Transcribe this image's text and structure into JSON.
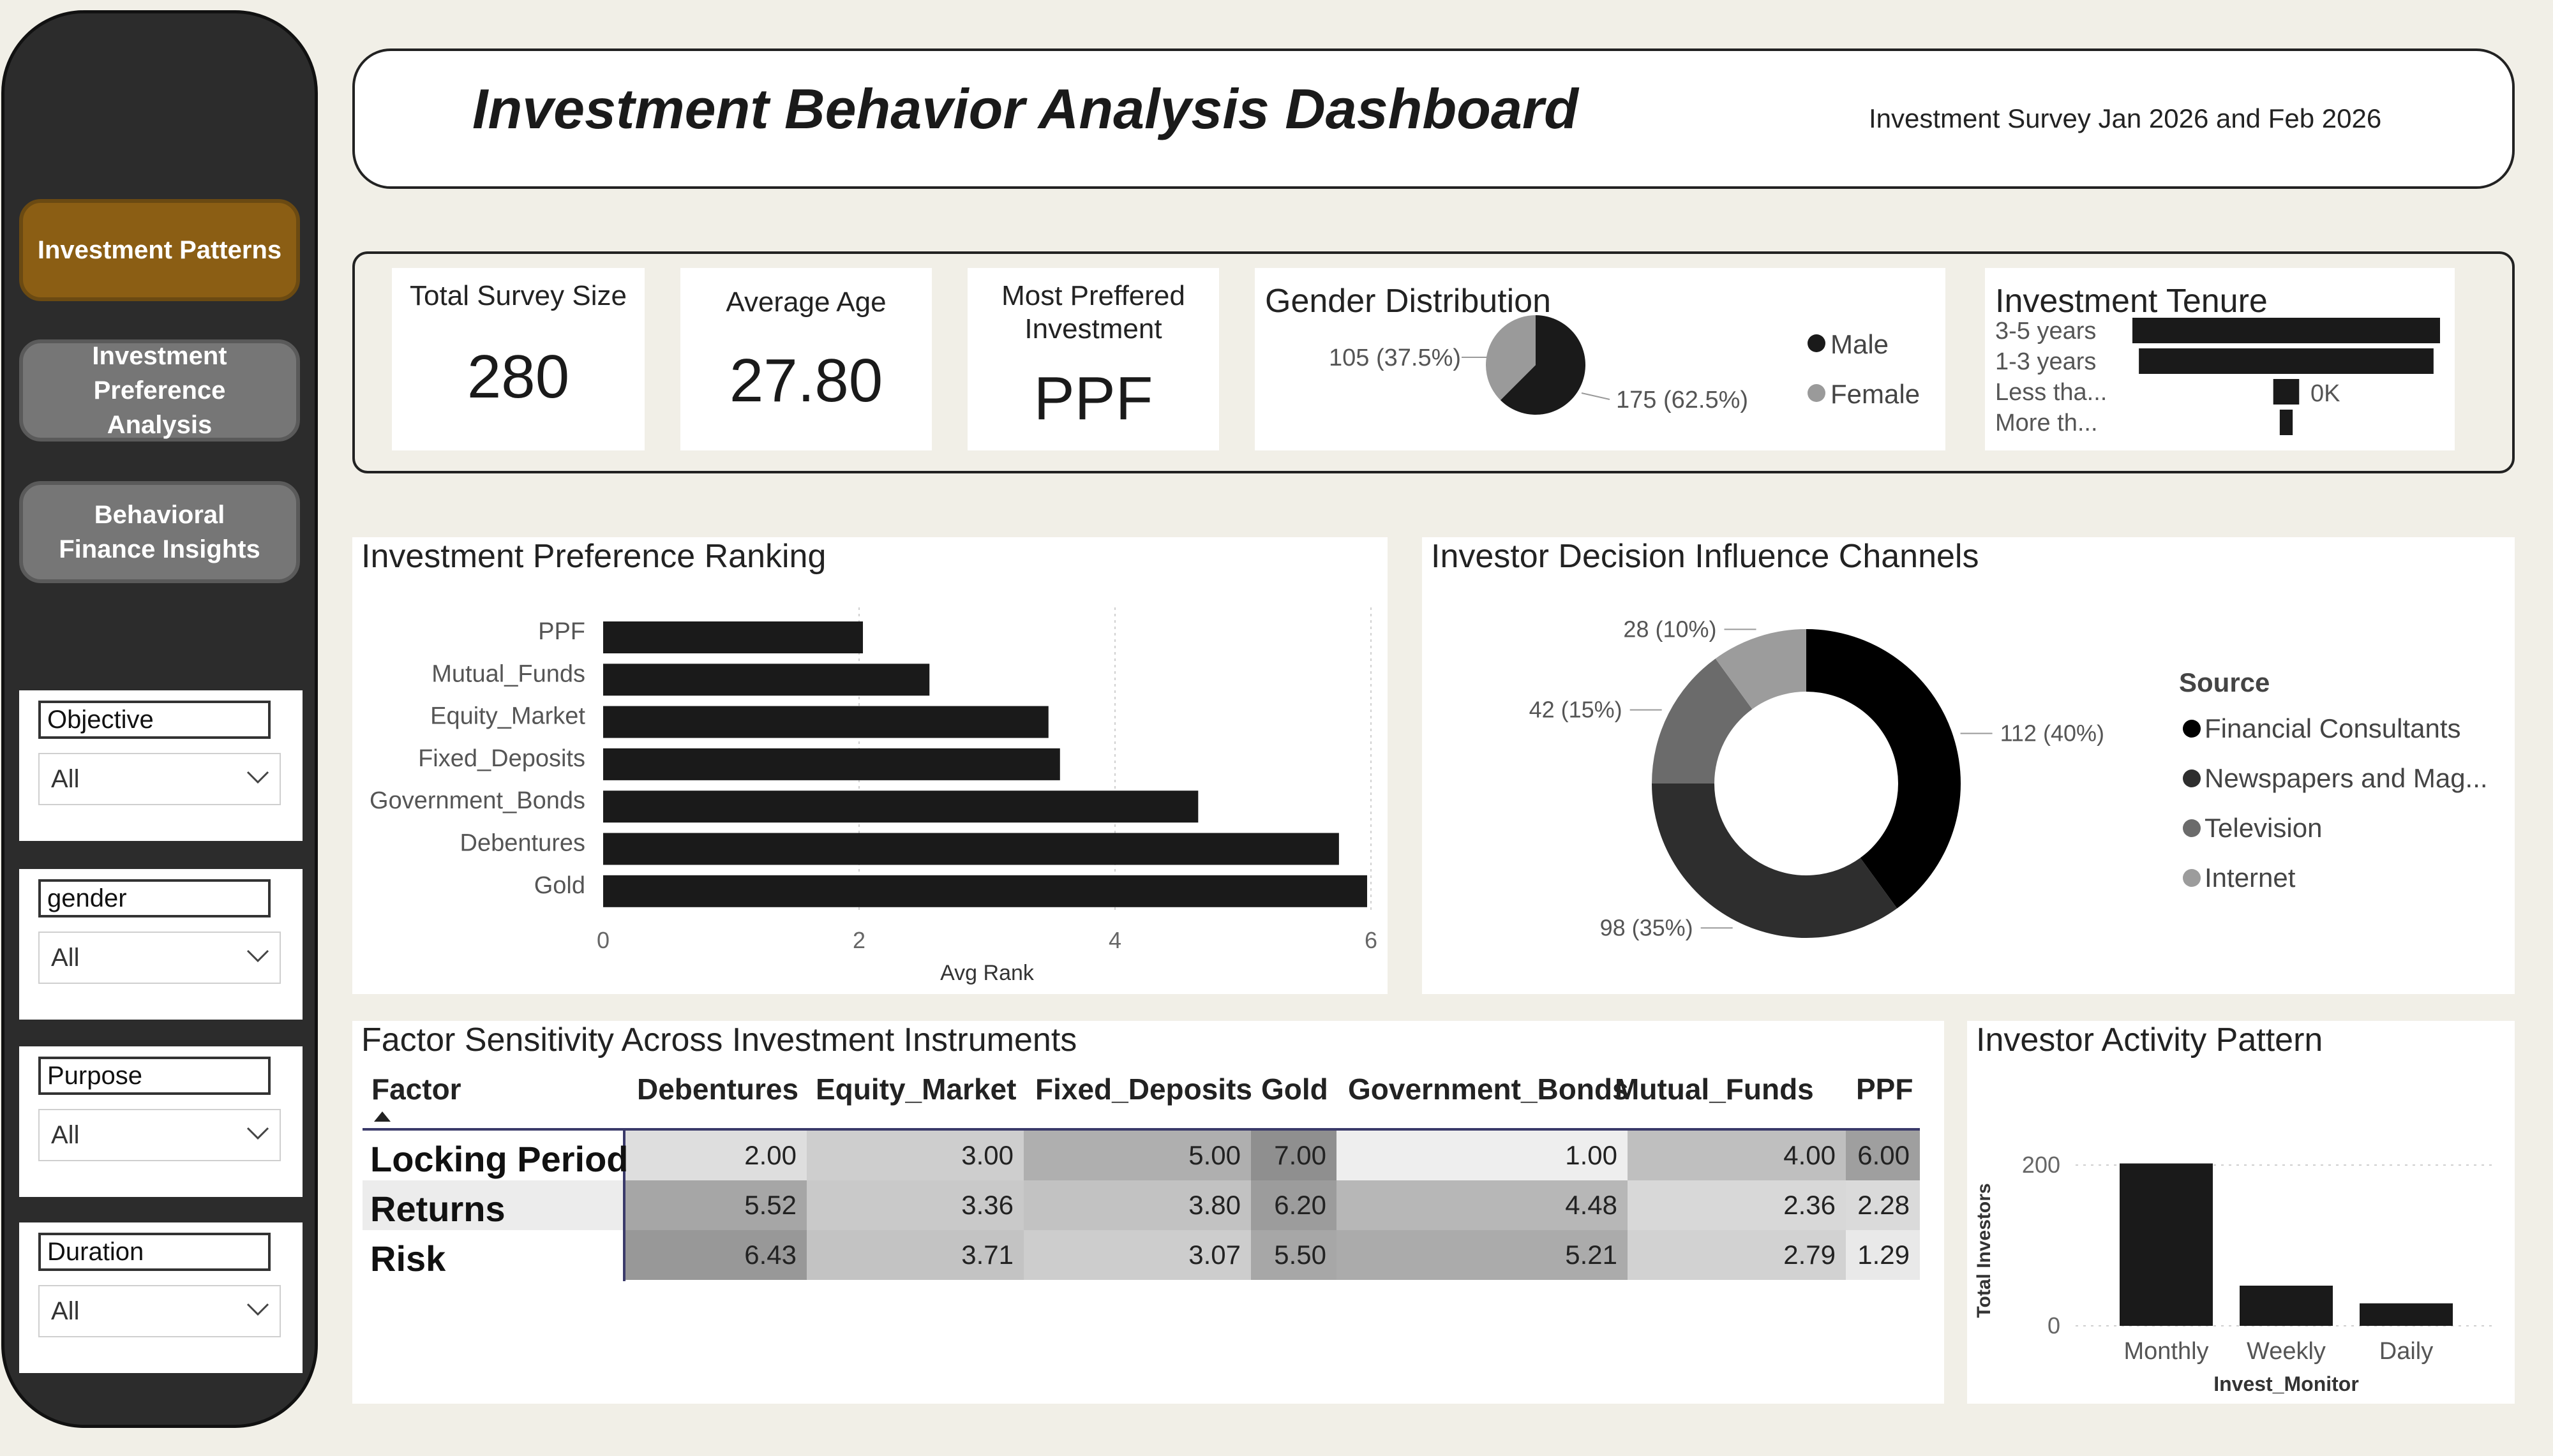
{
  "nav": {
    "buttons": [
      {
        "label": "Investment Patterns",
        "active": true
      },
      {
        "label": "Investment Preference Analysis",
        "active": false
      },
      {
        "label": "Behavioral Finance Insights",
        "active": false
      }
    ]
  },
  "filters": [
    {
      "label": "Objective",
      "value": "All"
    },
    {
      "label": "gender",
      "value": "All"
    },
    {
      "label": "Purpose",
      "value": "All"
    },
    {
      "label": "Duration",
      "value": "All"
    }
  ],
  "header": {
    "title": "Investment Behavior Analysis Dashboard",
    "subtitle": "Investment Survey Jan 2026 and Feb 2026"
  },
  "kpis": {
    "survey_size": {
      "label": "Total Survey Size",
      "value": "280"
    },
    "average_age": {
      "label": "Average Age",
      "value": "27.80"
    },
    "preferred": {
      "label": "Most Preffered Investment",
      "value": "PPF"
    }
  },
  "gender": {
    "title": "Gender Distribution",
    "female_label": "105 (37.5%)",
    "male_label": "175 (62.5%)",
    "legend": [
      "Male",
      "Female"
    ],
    "colors": {
      "male": "#1a1a1a",
      "female": "#9a9a9a"
    }
  },
  "tenure": {
    "title": "Investment Tenure",
    "categories": [
      "3-5 years",
      "1-3 years",
      "Less tha...",
      "More th..."
    ],
    "zero_label": "0K"
  },
  "ranking": {
    "title": "Investment Preference Ranking"
  },
  "channels": {
    "title": "Investor Decision Influence Channels",
    "legend_title": "Source"
  },
  "factor": {
    "title": "Factor Sensitivity Across Investment Instruments",
    "header_first": "Factor",
    "columns": [
      "Debentures",
      "Equity_Market",
      "Fixed_Deposits",
      "Gold",
      "Government_Bonds",
      "Mutual_Funds",
      "PPF"
    ],
    "rows": [
      {
        "label": "Locking Period",
        "values": [
          "2.00",
          "3.00",
          "5.00",
          "7.00",
          "1.00",
          "4.00",
          "6.00"
        ]
      },
      {
        "label": "Returns",
        "values": [
          "5.52",
          "3.36",
          "3.80",
          "6.20",
          "4.48",
          "2.36",
          "2.28"
        ]
      },
      {
        "label": "Risk",
        "values": [
          "6.43",
          "3.71",
          "3.07",
          "5.50",
          "5.21",
          "2.79",
          "1.29"
        ]
      }
    ]
  },
  "activity": {
    "title": "Investor Activity Pattern"
  },
  "chart_data": [
    {
      "type": "pie",
      "title": "Gender Distribution",
      "categories": [
        "Male",
        "Female"
      ],
      "values": [
        175,
        105
      ],
      "data_labels": [
        "175 (62.5%)",
        "105 (37.5%)"
      ],
      "colors": [
        "#1a1a1a",
        "#9a9a9a"
      ],
      "legend": "right"
    },
    {
      "type": "bar",
      "orientation": "horizontal",
      "title": "Investment Tenure",
      "categories": [
        "3-5 years",
        "1-3 years",
        "Less tha...",
        "More th..."
      ],
      "values": [
        190,
        182,
        16,
        8
      ],
      "annotation": "0K"
    },
    {
      "type": "bar",
      "orientation": "horizontal",
      "title": "Investment Preference Ranking",
      "categories": [
        "PPF",
        "Mutual_Funds",
        "Equity_Market",
        "Fixed_Deposits",
        "Government_Bonds",
        "Debentures",
        "Gold"
      ],
      "values": [
        2.03,
        2.55,
        3.48,
        3.57,
        4.65,
        5.75,
        5.97
      ],
      "xlabel": "Avg Rank",
      "xlim": [
        0,
        6
      ],
      "xticks": [
        "0",
        "2",
        "4",
        "6"
      ],
      "grid": true
    },
    {
      "type": "pie",
      "style": "donut",
      "title": "Investor Decision Influence Channels",
      "legend_title": "Source",
      "categories": [
        "Financial Consultants",
        "Newspapers and Mag...",
        "Television",
        "Internet"
      ],
      "values": [
        112,
        98,
        42,
        28
      ],
      "data_labels": [
        "112 (40%)",
        "98 (35%)",
        "42 (15%)",
        "28 (10%)"
      ],
      "colors": [
        "#000000",
        "#2e2e2e",
        "#6b6b6b",
        "#9c9c9c"
      ],
      "legend": "right"
    },
    {
      "type": "bar",
      "title": "Investor Activity Pattern",
      "categories": [
        "Monthly",
        "Weekly",
        "Daily"
      ],
      "values": [
        202,
        50,
        28
      ],
      "xlabel": "Invest_Monitor",
      "ylabel": "Total Investors",
      "ylim": [
        0,
        200
      ],
      "yticks": [
        "0",
        "200"
      ],
      "grid": true
    }
  ]
}
